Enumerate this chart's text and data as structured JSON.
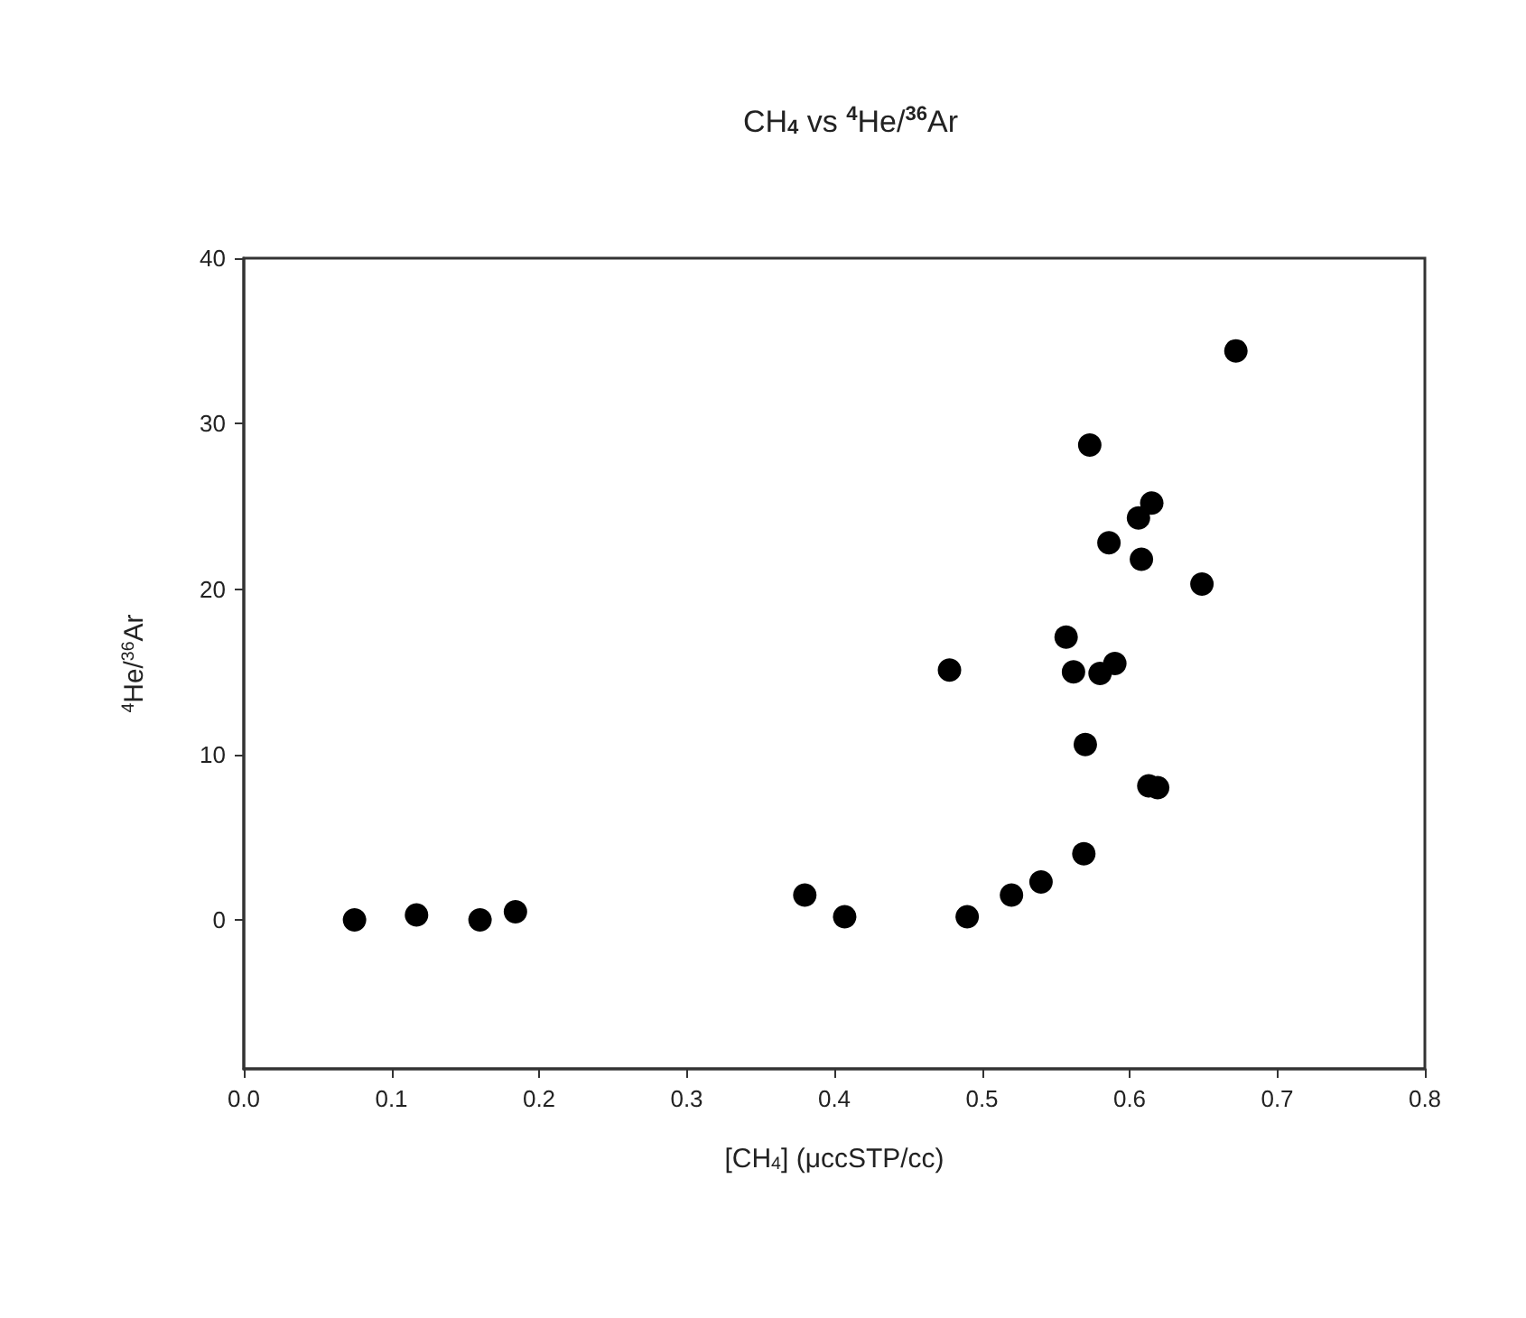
{
  "chart_data": {
    "type": "scatter",
    "title": "CH$_{4}$ vs $^{4}$He/$^{36}$Ar",
    "xlabel": "[CH$_{4}$] (μccSTP/cc)",
    "ylabel": "$^{4}$He/$^{36}$Ar",
    "x": [
      0.075,
      0.117,
      0.16,
      0.184,
      0.38,
      0.407,
      0.478,
      0.49,
      0.52,
      0.54,
      0.557,
      0.562,
      0.569,
      0.57,
      0.573,
      0.58,
      0.586,
      0.59,
      0.606,
      0.608,
      0.613,
      0.619,
      0.615,
      0.649,
      0.672
    ],
    "series": [
      {
        "color": "#000000",
        "values": [
          0,
          0.3,
          0,
          0.5,
          1.5,
          0.2,
          15.1,
          0.2,
          1.5,
          2.3,
          17.1,
          15,
          4,
          10.6,
          28.7,
          14.9,
          22.8,
          15.5,
          24.3,
          21.8,
          8.1,
          8,
          25.2,
          20.3,
          34.4
        ]
      }
    ],
    "xlim": [
      0,
      0.8
    ],
    "xticks": [
      {
        "value": 0,
        "label": "0.0"
      },
      {
        "value": 0.1,
        "label": "0.1"
      },
      {
        "value": 0.2,
        "label": "0.2"
      },
      {
        "value": 0.3,
        "label": "0.3"
      },
      {
        "value": 0.4,
        "label": "0.4"
      },
      {
        "value": 0.5,
        "label": "0.5"
      },
      {
        "value": 0.6,
        "label": "0.6"
      },
      {
        "value": 0.7,
        "label": "0.7"
      },
      {
        "value": 0.8,
        "label": "0.8"
      }
    ],
    "ylim": [
      -9,
      40
    ],
    "yticks": [
      0,
      10,
      20,
      30,
      40
    ],
    "grid": false,
    "marker": "circle"
  }
}
